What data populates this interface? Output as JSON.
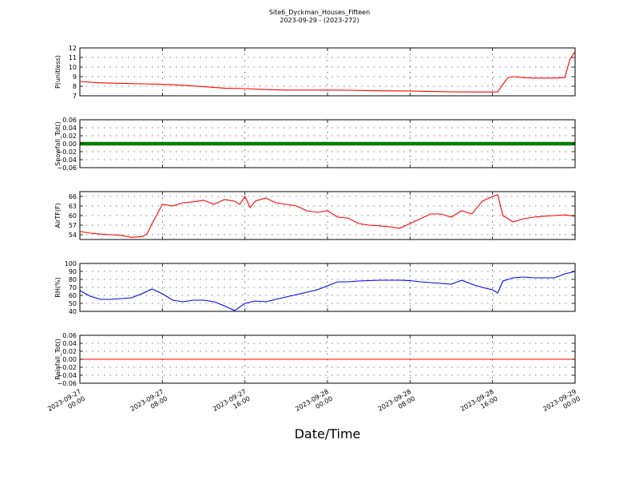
{
  "title": "Site6_Dyckman_Houses_Fifteen",
  "subtitle": "2023-09-29 - (2023-272)",
  "xlabel": "Date/Time",
  "xticks": [
    {
      "value": 0,
      "line1": "2023-09-27",
      "line2": "00:00"
    },
    {
      "value": 8,
      "line1": "2023-09-27",
      "line2": "08:00"
    },
    {
      "value": 16,
      "line1": "2023-09-27",
      "line2": "16:00"
    },
    {
      "value": 24,
      "line1": "2023-09-28",
      "line2": "00:00"
    },
    {
      "value": 32,
      "line1": "2023-09-28",
      "line2": "08:00"
    },
    {
      "value": 40,
      "line1": "2023-09-28",
      "line2": "16:00"
    },
    {
      "value": 48,
      "line1": "2023-09-29",
      "line2": "00:00"
    }
  ],
  "chart_data": [
    {
      "id": "pressure",
      "type": "line",
      "ylabel": "P(unitless)",
      "ylim": [
        7,
        12
      ],
      "yticks": [
        7,
        8,
        9,
        10,
        11,
        12
      ],
      "tick_labels": [
        "7",
        "8",
        "9",
        "10",
        "11",
        "12"
      ],
      "grid": true,
      "color": "#ff0000",
      "marker": false,
      "x": [
        0,
        2,
        4,
        6,
        8,
        10,
        12,
        14,
        16,
        18,
        20,
        22,
        24,
        26,
        28,
        30,
        32,
        34,
        36,
        38,
        39.5,
        40.5,
        41,
        41.5,
        42,
        43,
        44,
        45,
        46,
        47,
        47.5,
        48
      ],
      "y": [
        8.5,
        8.35,
        8.3,
        8.25,
        8.2,
        8.1,
        7.95,
        7.8,
        7.75,
        7.65,
        7.6,
        7.6,
        7.6,
        7.58,
        7.55,
        7.52,
        7.5,
        7.45,
        7.42,
        7.4,
        7.4,
        7.4,
        8.2,
        8.9,
        9.0,
        8.9,
        8.85,
        8.85,
        8.85,
        8.9,
        10.8,
        11.6
      ]
    },
    {
      "id": "snowfall",
      "type": "line",
      "ylabel": "Snowfall_Tot()",
      "ylim": [
        -0.06,
        0.06
      ],
      "yticks": [
        -0.06,
        -0.04,
        -0.02,
        0.0,
        0.02,
        0.04,
        0.06
      ],
      "tick_labels": [
        "−0.06",
        "−0.04",
        "−0.02",
        "0.00",
        "0.02",
        "0.04",
        "0.06"
      ],
      "grid": true,
      "color": "#007f00",
      "marker": true,
      "x": [
        0,
        48
      ],
      "y": [
        0,
        0
      ]
    },
    {
      "id": "airtemp",
      "type": "line",
      "ylabel": "AirTF(F)",
      "ylim": [
        52.5,
        67.5
      ],
      "yticks": [
        54,
        57,
        60,
        63,
        66
      ],
      "tick_labels": [
        "54",
        "57",
        "60",
        "63",
        "66"
      ],
      "grid": true,
      "color": "#ff0000",
      "marker": false,
      "x": [
        0,
        1,
        2,
        3,
        4,
        5,
        6,
        6.5,
        7,
        7.5,
        8,
        9,
        10,
        11,
        12,
        13,
        14,
        15,
        15.5,
        16,
        16.5,
        17,
        18,
        19,
        20,
        21,
        22,
        23,
        24,
        25,
        26,
        27,
        28,
        29,
        30,
        31,
        32,
        33,
        34,
        35,
        36,
        37,
        38,
        39,
        40,
        40.5,
        41,
        42,
        43,
        44,
        45,
        46,
        47,
        48
      ],
      "y": [
        55,
        54.5,
        54.2,
        54.0,
        53.8,
        53.2,
        53.4,
        54.2,
        57.5,
        60.5,
        63.5,
        63.0,
        64.0,
        64.3,
        64.8,
        63.5,
        65.0,
        64.5,
        63.5,
        66.0,
        62.5,
        64.5,
        65.5,
        64.0,
        63.5,
        63.0,
        61.5,
        61.0,
        61.5,
        59.5,
        59.2,
        57.5,
        57.0,
        56.8,
        56.5,
        56.0,
        57.5,
        59.0,
        60.5,
        60.5,
        59.5,
        61.5,
        60.5,
        64.5,
        66.0,
        66.5,
        60.0,
        58.0,
        59.0,
        59.5,
        59.8,
        60.0,
        60.2,
        59.8
      ]
    },
    {
      "id": "rh",
      "type": "line",
      "ylabel": "RH(%)",
      "ylim": [
        40,
        100
      ],
      "yticks": [
        40,
        50,
        60,
        70,
        80,
        90,
        100
      ],
      "tick_labels": [
        "40",
        "50",
        "60",
        "70",
        "80",
        "90",
        "100"
      ],
      "grid": true,
      "color": "#0000ff",
      "marker": false,
      "x": [
        0,
        1,
        2,
        3,
        4,
        5,
        6,
        7,
        8,
        9,
        10,
        11,
        12,
        13,
        14,
        15,
        16,
        17,
        18,
        19,
        20,
        21,
        22,
        23,
        24,
        25,
        26,
        27,
        28,
        29,
        30,
        31,
        32,
        33,
        34,
        35,
        36,
        37,
        38,
        39,
        40,
        40.5,
        41,
        41.5,
        42,
        43,
        44,
        45,
        46,
        47,
        48
      ],
      "y": [
        66,
        59,
        55,
        55,
        56,
        57,
        62,
        68,
        62,
        54,
        52,
        54,
        54,
        52,
        47,
        41,
        50,
        53,
        52,
        55,
        58,
        61,
        64,
        67,
        72,
        77,
        77,
        78,
        78.5,
        79,
        79,
        79,
        78.5,
        77,
        76,
        75,
        74,
        79,
        74,
        70,
        67,
        63,
        78,
        80,
        82,
        83,
        82,
        82,
        82,
        87,
        90
      ]
    },
    {
      "id": "rainfall",
      "type": "line",
      "ylabel": "Rainfall_Tot()",
      "ylim": [
        -0.06,
        0.06
      ],
      "yticks": [
        -0.06,
        -0.04,
        -0.02,
        0.0,
        0.02,
        0.04,
        0.06
      ],
      "tick_labels": [
        "−0.06",
        "−0.04",
        "−0.02",
        "0.00",
        "0.02",
        "0.04",
        "0.06"
      ],
      "grid": true,
      "color": "#ff0000",
      "marker": false,
      "x": [
        0,
        48
      ],
      "y": [
        0,
        0
      ]
    }
  ]
}
